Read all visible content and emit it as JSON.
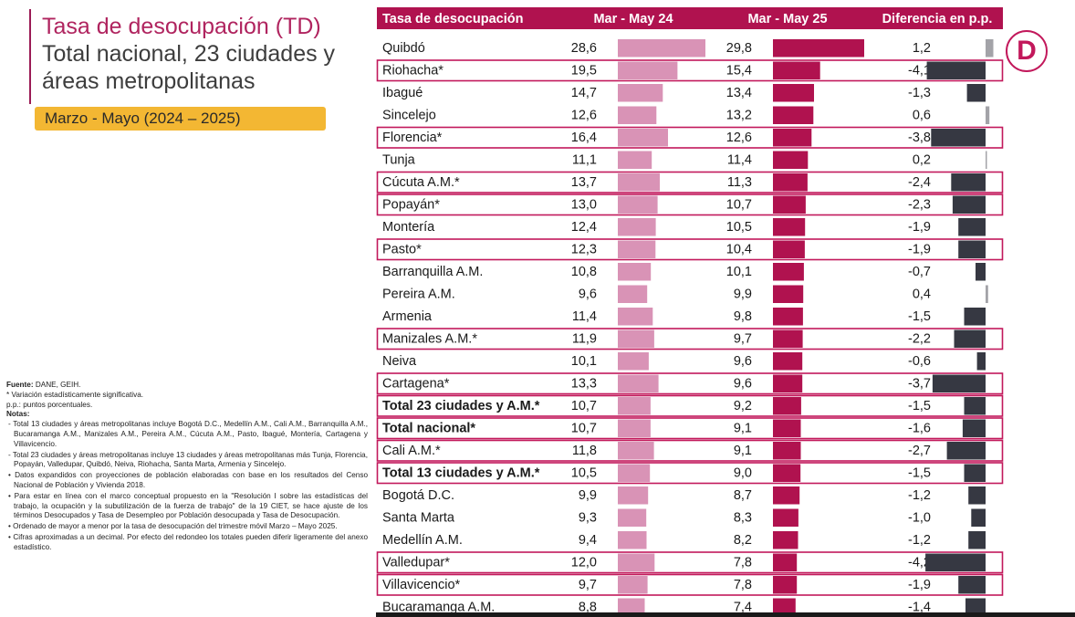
{
  "title_line1": "Tasa de desocupación (TD)",
  "title_line2": "Total nacional, 23 ciudades y",
  "title_line3": "áreas metropolitanas",
  "period": "Marzo - Mayo (2024 – 2025)",
  "logo_letter": "D",
  "notes": {
    "fuente_label": "Fuente:",
    "fuente_text": " DANE, GEIH.",
    "line1": "* Variación estadísticamente significativa.",
    "line2": "p.p.: puntos porcentuales.",
    "notas_label": "Notas:",
    "bullets": [
      "- Total 13 ciudades y áreas metropolitanas incluye Bogotá D.C., Medellín A.M., Cali A.M., Barranquilla A.M., Bucaramanga A.M., Manizales A.M., Pereira A.M., Cúcuta A.M., Pasto, Ibagué, Montería, Cartagena y Villavicencio.",
      "- Total 23 ciudades y áreas metropolitanas incluye 13 ciudades y áreas metropolitanas más Tunja, Florencia, Popayán, Valledupar, Quibdó, Neiva, Riohacha, Santa Marta, Armenia y Sincelejo.",
      "• Datos expandidos con proyecciones de población elaboradas con base en los resultados del Censo Nacional de Población y Vivienda 2018.",
      "• Para estar en línea con el marco conceptual propuesto en la \"Resolución I sobre las estadísticas del trabajo, la ocupación y la subutilización de la fuerza de trabajo\" de la 19 CIET, se hace ajuste de los términos Desocupados y Tasa de Desempleo por Población desocupada y Tasa de Desocupación.",
      "• Ordenado de mayor a menor por la tasa de desocupación del trimestre móvil Marzo – Mayo 2025.",
      "• Cifras aproximadas a un decimal. Por efecto del redondeo los totales pueden diferir ligeramente del anexo estadístico."
    ]
  },
  "chart_data": {
    "type": "table",
    "columns": [
      "Tasa de desocupación",
      "Mar - May 24",
      "Mar - May 25",
      "Diferencia en p.p."
    ],
    "colors": {
      "header_bg": "#b0124f",
      "bar_2024": "#d993b6",
      "bar_2025": "#b0124f",
      "bar_diff_neg": "#363842",
      "bar_diff_pos": "#a3a3a8",
      "highlight_border": "#c2185b"
    },
    "rows": [
      {
        "name": "Quibdó",
        "v24": 28.6,
        "v25": 29.8,
        "diff": 1.2,
        "bold": false,
        "boxed": false
      },
      {
        "name": "Riohacha*",
        "v24": 19.5,
        "v25": 15.4,
        "diff": -4.1,
        "bold": false,
        "boxed": true
      },
      {
        "name": "Ibagué",
        "v24": 14.7,
        "v25": 13.4,
        "diff": -1.3,
        "bold": false,
        "boxed": false
      },
      {
        "name": "Sincelejo",
        "v24": 12.6,
        "v25": 13.2,
        "diff": 0.6,
        "bold": false,
        "boxed": false
      },
      {
        "name": "Florencia*",
        "v24": 16.4,
        "v25": 12.6,
        "diff": -3.8,
        "bold": false,
        "boxed": true
      },
      {
        "name": "Tunja",
        "v24": 11.1,
        "v25": 11.4,
        "diff": 0.2,
        "bold": false,
        "boxed": false
      },
      {
        "name": "Cúcuta A.M.*",
        "v24": 13.7,
        "v25": 11.3,
        "diff": -2.4,
        "bold": false,
        "boxed": true
      },
      {
        "name": "Popayán*",
        "v24": 13.0,
        "v25": 10.7,
        "diff": -2.3,
        "bold": false,
        "boxed": true
      },
      {
        "name": "Montería",
        "v24": 12.4,
        "v25": 10.5,
        "diff": -1.9,
        "bold": false,
        "boxed": false
      },
      {
        "name": "Pasto*",
        "v24": 12.3,
        "v25": 10.4,
        "diff": -1.9,
        "bold": false,
        "boxed": true
      },
      {
        "name": "Barranquilla A.M.",
        "v24": 10.8,
        "v25": 10.1,
        "diff": -0.7,
        "bold": false,
        "boxed": false
      },
      {
        "name": "Pereira A.M.",
        "v24": 9.6,
        "v25": 9.9,
        "diff": 0.4,
        "bold": false,
        "boxed": false
      },
      {
        "name": "Armenia",
        "v24": 11.4,
        "v25": 9.8,
        "diff": -1.5,
        "bold": false,
        "boxed": false
      },
      {
        "name": "Manizales A.M.*",
        "v24": 11.9,
        "v25": 9.7,
        "diff": -2.2,
        "bold": false,
        "boxed": true
      },
      {
        "name": "Neiva",
        "v24": 10.1,
        "v25": 9.6,
        "diff": -0.6,
        "bold": false,
        "boxed": false
      },
      {
        "name": "Cartagena*",
        "v24": 13.3,
        "v25": 9.6,
        "diff": -3.7,
        "bold": false,
        "boxed": true
      },
      {
        "name": "Total 23 ciudades y A.M.*",
        "v24": 10.7,
        "v25": 9.2,
        "diff": -1.5,
        "bold": true,
        "boxed": true
      },
      {
        "name": "Total nacional*",
        "v24": 10.7,
        "v25": 9.1,
        "diff": -1.6,
        "bold": true,
        "boxed": true
      },
      {
        "name": "Cali A.M.*",
        "v24": 11.8,
        "v25": 9.1,
        "diff": -2.7,
        "bold": false,
        "boxed": true
      },
      {
        "name": "Total 13 ciudades y A.M.*",
        "v24": 10.5,
        "v25": 9.0,
        "diff": -1.5,
        "bold": true,
        "boxed": true
      },
      {
        "name": "Bogotá D.C.",
        "v24": 9.9,
        "v25": 8.7,
        "diff": -1.2,
        "bold": false,
        "boxed": false
      },
      {
        "name": "Santa Marta",
        "v24": 9.3,
        "v25": 8.3,
        "diff": -1.0,
        "bold": false,
        "boxed": false
      },
      {
        "name": "Medellín A.M.",
        "v24": 9.4,
        "v25": 8.2,
        "diff": -1.2,
        "bold": false,
        "boxed": false
      },
      {
        "name": "Valledupar*",
        "v24": 12.0,
        "v25": 7.8,
        "diff": -4.2,
        "bold": false,
        "boxed": true
      },
      {
        "name": "Villavicencio*",
        "v24": 9.7,
        "v25": 7.8,
        "diff": -1.9,
        "bold": false,
        "boxed": true
      },
      {
        "name": "Bucaramanga A.M.",
        "v24": 8.8,
        "v25": 7.4,
        "diff": -1.4,
        "bold": false,
        "boxed": false
      }
    ]
  }
}
